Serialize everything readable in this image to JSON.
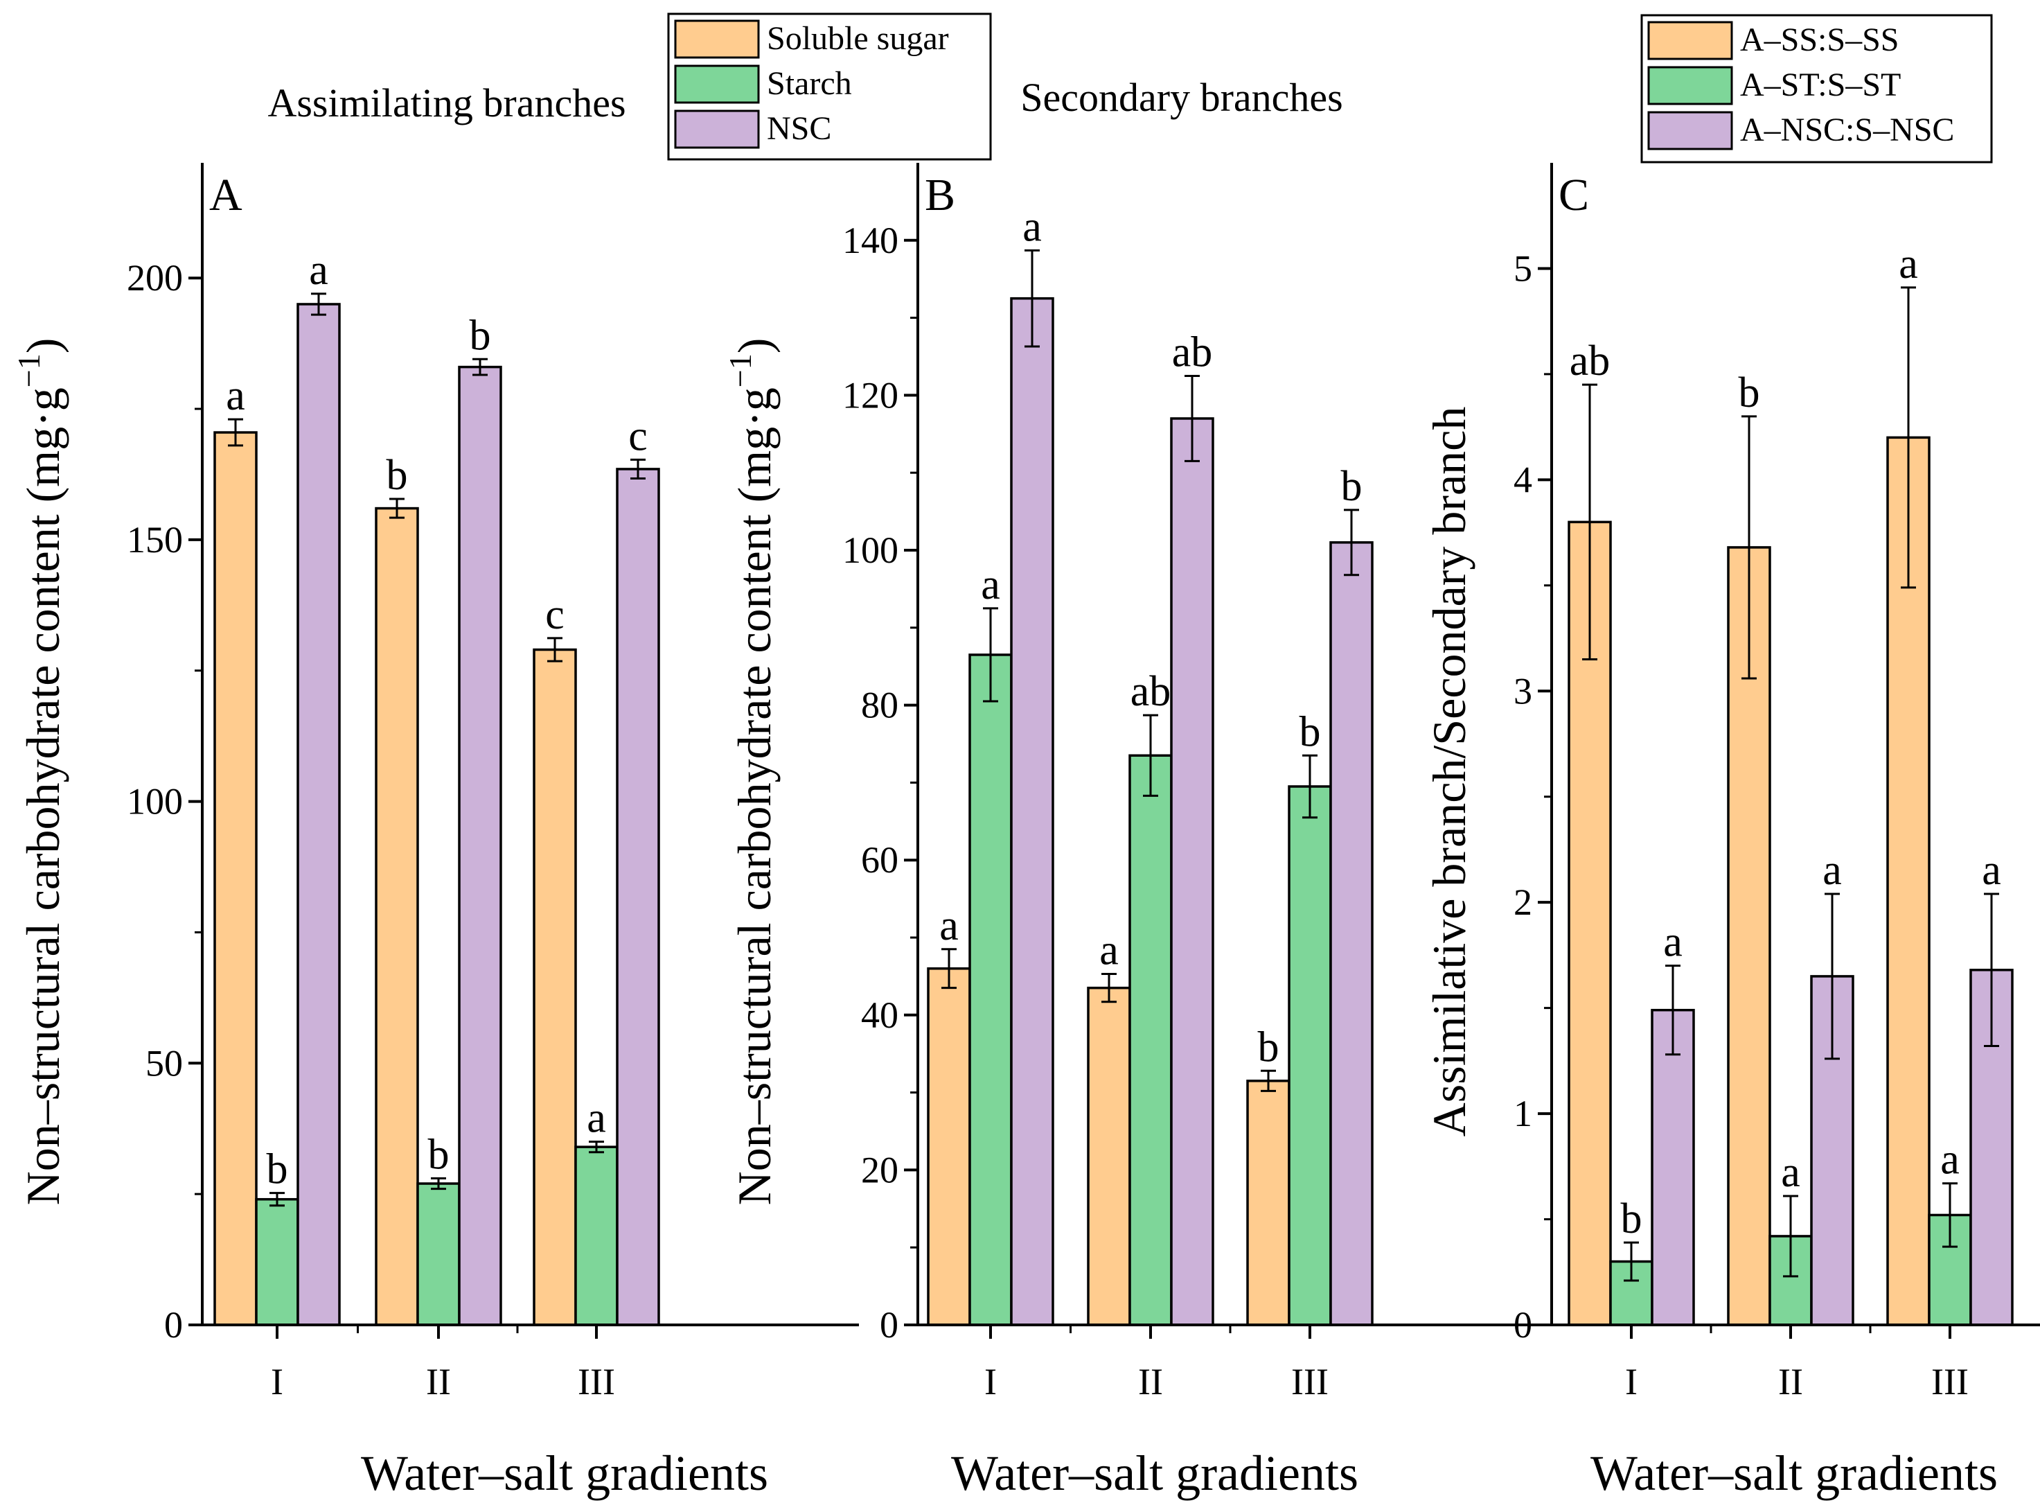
{
  "colors": {
    "soluble_sugar": "#FFCC8F",
    "starch": "#7ED699",
    "nsc": "#CCB2D9",
    "axis": "#000000"
  },
  "chart_data": [
    {
      "id": "A",
      "type": "bar",
      "panel_label": "A",
      "subtitle": "Assimilating branches",
      "categories": [
        "I",
        "II",
        "III"
      ],
      "xlabel": "Water–salt gradients",
      "ylabel": "Non–structural carbohydrate content (mg·g",
      "ylabel_sup": "−1",
      "ylabel_close": ")",
      "ylim": [
        0,
        222
      ],
      "yticks": [
        0,
        50,
        100,
        150,
        200
      ],
      "series": [
        {
          "name": "Soluble sugar",
          "color_key": "soluble_sugar",
          "values": [
            170.5,
            156,
            129
          ],
          "errors": [
            2.5,
            1.8,
            2.2
          ],
          "labels": [
            "a",
            "b",
            "c"
          ]
        },
        {
          "name": "Starch",
          "color_key": "starch",
          "values": [
            24,
            27,
            34
          ],
          "errors": [
            1.2,
            1.0,
            1.0
          ],
          "labels": [
            "b",
            "b",
            "a"
          ]
        },
        {
          "name": "NSC",
          "color_key": "nsc",
          "values": [
            195,
            183,
            163.5
          ],
          "errors": [
            2.0,
            1.5,
            1.8
          ],
          "labels": [
            "a",
            "b",
            "c"
          ]
        }
      ],
      "legend": {
        "placement": "top-center",
        "entries": [
          "Soluble sugar",
          "Starch",
          "NSC"
        ]
      }
    },
    {
      "id": "B",
      "type": "bar",
      "panel_label": "B",
      "subtitle": "Secondary branches",
      "categories": [
        "I",
        "II",
        "III"
      ],
      "xlabel": "Water–salt gradients",
      "ylabel": "Non–structural carbohydrate content (mg·g",
      "ylabel_sup": "−1",
      "ylabel_close": ")",
      "ylim": [
        0,
        150
      ],
      "yticks": [
        0,
        20,
        40,
        60,
        80,
        100,
        120,
        140
      ],
      "series": [
        {
          "name": "Soluble sugar",
          "color_key": "soluble_sugar",
          "values": [
            46,
            43.5,
            31.5
          ],
          "errors": [
            2.5,
            1.8,
            1.3
          ],
          "labels": [
            "a",
            "a",
            "b"
          ]
        },
        {
          "name": "Starch",
          "color_key": "starch",
          "values": [
            86.5,
            73.5,
            69.5
          ],
          "errors": [
            6.0,
            5.2,
            4.0
          ],
          "labels": [
            "a",
            "ab",
            "b"
          ]
        },
        {
          "name": "NSC",
          "color_key": "nsc",
          "values": [
            132.5,
            117,
            101
          ],
          "errors": [
            6.2,
            5.5,
            4.2
          ],
          "labels": [
            "a",
            "ab",
            "b"
          ]
        }
      ]
    },
    {
      "id": "C",
      "type": "bar",
      "panel_label": "C",
      "categories": [
        "I",
        "II",
        "III"
      ],
      "xlabel": "Water–salt gradients",
      "ylabel": "Assimilative branch/Secondary branch",
      "ylim": [
        0,
        5.5
      ],
      "yticks": [
        0,
        1,
        2,
        3,
        4,
        5
      ],
      "series": [
        {
          "name": "A–SS:S–SS",
          "color_key": "soluble_sugar",
          "values": [
            3.8,
            3.68,
            4.2
          ],
          "errors": [
            0.65,
            0.62,
            0.71
          ],
          "labels": [
            "ab",
            "b",
            "a"
          ]
        },
        {
          "name": "A–ST:S–ST",
          "color_key": "starch",
          "values": [
            0.3,
            0.42,
            0.52
          ],
          "errors": [
            0.09,
            0.19,
            0.15
          ],
          "labels": [
            "b",
            "a",
            "a"
          ]
        },
        {
          "name": "A–NSC:S–NSC",
          "color_key": "nsc",
          "values": [
            1.49,
            1.65,
            1.68
          ],
          "errors": [
            0.21,
            0.39,
            0.36
          ],
          "labels": [
            "a",
            "a",
            "a"
          ]
        }
      ],
      "legend": {
        "placement": "top-right",
        "entries": [
          "A–SS:S–SS",
          "A–ST:S–ST",
          "A–NSC:S–NSC"
        ]
      }
    }
  ]
}
